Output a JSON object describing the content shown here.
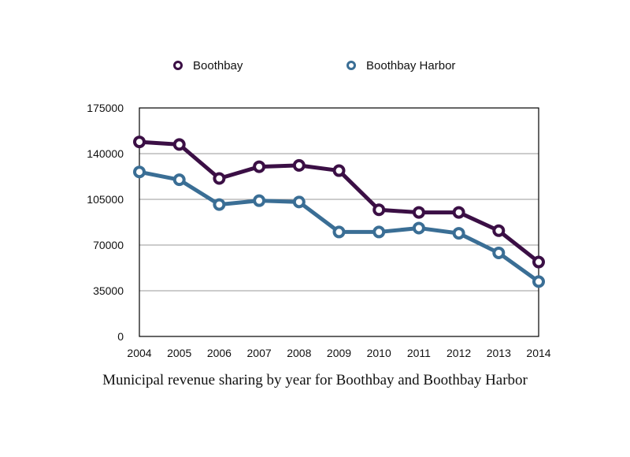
{
  "chart_data": {
    "type": "line",
    "title": "",
    "caption": "Municipal revenue sharing by year for Boothbay and Boothbay Harbor",
    "xlabel": "",
    "ylabel": "",
    "x": [
      "2004",
      "2005",
      "2006",
      "2007",
      "2008",
      "2009",
      "2010",
      "2011",
      "2012",
      "2013",
      "2014"
    ],
    "ylim": [
      0,
      175000
    ],
    "yticks": [
      "0",
      "35000",
      "70000",
      "105000",
      "140000",
      "175000"
    ],
    "grid": true,
    "legend_position": "top",
    "series": [
      {
        "name": "Boothbay",
        "color": "#3b0f45",
        "values": [
          149000,
          147000,
          121000,
          130000,
          131000,
          127000,
          97000,
          95000,
          95000,
          81000,
          57000
        ]
      },
      {
        "name": "Boothbay Harbor",
        "color": "#3a6e95",
        "values": [
          126000,
          120000,
          101000,
          104000,
          103000,
          80000,
          80000,
          83000,
          79000,
          64000,
          42000
        ]
      }
    ]
  }
}
